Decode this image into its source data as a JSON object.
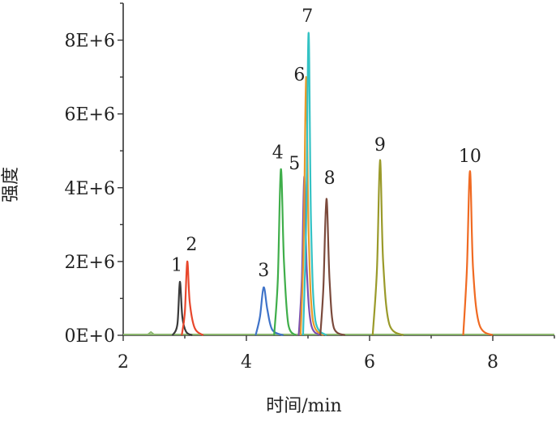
{
  "chart_data": {
    "type": "line",
    "xlabel": "时间/min",
    "ylabel": "强度",
    "xlim": [
      2,
      9
    ],
    "ylim": [
      0,
      9000000
    ],
    "x_ticks": [
      2,
      4,
      6,
      8
    ],
    "x_tick_labels": [
      "2",
      "4",
      "6",
      "8"
    ],
    "y_ticks": [
      0,
      2000000,
      4000000,
      6000000,
      8000000
    ],
    "y_tick_labels": [
      "0E+0",
      "2E+6",
      "4E+6",
      "6E+6",
      "8E+6"
    ],
    "baseline_color": "#8bb66e",
    "series": [
      {
        "name": "1",
        "color": "#3a3a3a",
        "x": [
          2.8,
          2.88,
          2.92,
          2.96,
          3.02,
          3.12
        ],
        "y": [
          0,
          300000,
          1450000,
          500000,
          100000,
          0
        ]
      },
      {
        "name": "2",
        "color": "#e8472c",
        "x": [
          2.95,
          3.0,
          3.04,
          3.08,
          3.16,
          3.3
        ],
        "y": [
          0,
          600000,
          2000000,
          900000,
          200000,
          0
        ]
      },
      {
        "name": "3",
        "color": "#3f73c9",
        "x": [
          4.15,
          4.22,
          4.28,
          4.34,
          4.42,
          4.6
        ],
        "y": [
          0,
          500000,
          1300000,
          700000,
          150000,
          0
        ]
      },
      {
        "name": "4",
        "color": "#3fae4a",
        "x": [
          4.45,
          4.51,
          4.56,
          4.61,
          4.68,
          4.8
        ],
        "y": [
          0,
          1500000,
          4500000,
          2000000,
          300000,
          0
        ]
      },
      {
        "name": "5",
        "color": "#7a4fb0",
        "x": [
          4.85,
          4.9,
          4.94,
          4.98,
          5.05,
          5.2
        ],
        "y": [
          0,
          1500000,
          4300000,
          1800000,
          300000,
          0
        ]
      },
      {
        "name": "6",
        "color": "#e89a2a",
        "x": [
          4.88,
          4.93,
          4.97,
          5.01,
          5.08,
          5.25
        ],
        "y": [
          0,
          2500000,
          7000000,
          2800000,
          400000,
          0
        ]
      },
      {
        "name": "7",
        "color": "#33c2c4",
        "x": [
          4.92,
          4.97,
          5.01,
          5.05,
          5.12,
          5.3
        ],
        "y": [
          0,
          3000000,
          8200000,
          3000000,
          400000,
          0
        ]
      },
      {
        "name": "8",
        "color": "#7b4a3c",
        "x": [
          5.2,
          5.25,
          5.3,
          5.35,
          5.42,
          5.6
        ],
        "y": [
          0,
          1300000,
          3700000,
          1500000,
          200000,
          0
        ]
      },
      {
        "name": "9",
        "color": "#9a9a2a",
        "x": [
          6.05,
          6.12,
          6.17,
          6.22,
          6.32,
          6.55
        ],
        "y": [
          0,
          1800000,
          4750000,
          2000000,
          300000,
          0
        ]
      },
      {
        "name": "10",
        "color": "#f06a22",
        "x": [
          7.52,
          7.58,
          7.63,
          7.68,
          7.78,
          8.0
        ],
        "y": [
          0,
          1800000,
          4450000,
          1800000,
          300000,
          0
        ]
      }
    ],
    "peak_labels": [
      {
        "text": "1",
        "x": 2.87,
        "y": 1750000
      },
      {
        "text": "2",
        "x": 3.11,
        "y": 2300000
      },
      {
        "text": "3",
        "x": 4.28,
        "y": 1600000
      },
      {
        "text": "4",
        "x": 4.51,
        "y": 4800000
      },
      {
        "text": "5",
        "x": 4.78,
        "y": 4500000
      },
      {
        "text": "6",
        "x": 4.86,
        "y": 6900000
      },
      {
        "text": "7",
        "x": 4.99,
        "y": 8500000
      },
      {
        "text": "8",
        "x": 5.35,
        "y": 4100000
      },
      {
        "text": "9",
        "x": 6.17,
        "y": 5000000
      },
      {
        "text": "10",
        "x": 7.63,
        "y": 4700000
      }
    ]
  }
}
